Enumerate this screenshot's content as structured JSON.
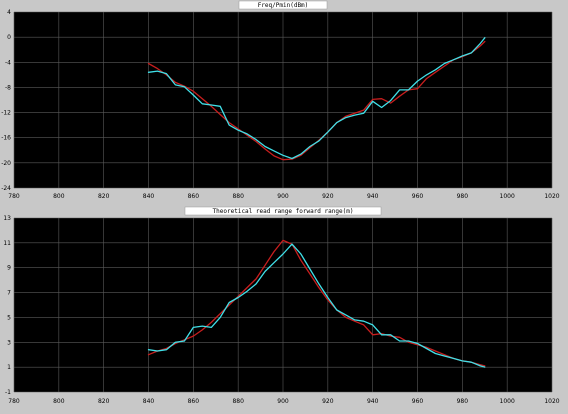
{
  "colors": {
    "window_bg": "#c8c8c8",
    "plot_bg": "#000000",
    "grid": "#5a5a5a",
    "series_1": "#c81e1e",
    "series_2": "#40e0e8"
  },
  "chart_data": [
    {
      "type": "line",
      "title": "Freq/Pmin(dBm)",
      "xlabel": "",
      "ylabel": "",
      "xlim": [
        780,
        1020
      ],
      "ylim": [
        -24,
        4
      ],
      "x_ticks": [
        780,
        800,
        820,
        840,
        860,
        880,
        900,
        920,
        940,
        960,
        980,
        1000,
        1020
      ],
      "y_ticks": [
        4,
        0,
        -4,
        -8,
        -12,
        -16,
        -20,
        -24
      ],
      "grid": true,
      "series": [
        {
          "color": "#c81e1e",
          "x": [
            840,
            844,
            848,
            852,
            856,
            860,
            864,
            868,
            872,
            876,
            880,
            884,
            888,
            892,
            896,
            900,
            904,
            908,
            912,
            916,
            920,
            924,
            928,
            932,
            936,
            940,
            944,
            948,
            952,
            956,
            960,
            964,
            968,
            972,
            976,
            980,
            984,
            988,
            990
          ],
          "y": [
            -4.2,
            -5.0,
            -6.0,
            -7.2,
            -7.8,
            -8.6,
            -9.8,
            -11.0,
            -12.3,
            -13.6,
            -14.6,
            -15.6,
            -16.6,
            -17.8,
            -18.9,
            -19.5,
            -19.4,
            -18.8,
            -17.6,
            -16.4,
            -15.1,
            -13.6,
            -12.6,
            -12.1,
            -11.6,
            -9.9,
            -9.8,
            -10.5,
            -9.4,
            -8.4,
            -8.2,
            -6.6,
            -5.6,
            -4.6,
            -3.6,
            -3.1,
            -2.5,
            -1.4,
            -0.7
          ]
        },
        {
          "color": "#40e0e8",
          "x": [
            840,
            844,
            848,
            852,
            856,
            860,
            864,
            868,
            872,
            876,
            880,
            884,
            888,
            892,
            896,
            900,
            904,
            908,
            912,
            916,
            920,
            924,
            928,
            932,
            936,
            940,
            944,
            948,
            952,
            956,
            960,
            964,
            968,
            972,
            976,
            980,
            984,
            988,
            990
          ],
          "y": [
            -5.6,
            -5.4,
            -5.8,
            -7.6,
            -7.9,
            -9.2,
            -10.6,
            -10.8,
            -11.0,
            -14.0,
            -14.8,
            -15.4,
            -16.3,
            -17.4,
            -18.1,
            -18.8,
            -19.3,
            -18.6,
            -17.4,
            -16.5,
            -15.1,
            -13.6,
            -12.8,
            -12.4,
            -12.1,
            -10.2,
            -11.2,
            -10.1,
            -8.4,
            -8.4,
            -7.0,
            -6.0,
            -5.2,
            -4.2,
            -3.6,
            -3.0,
            -2.5,
            -1.0,
            -0.1
          ]
        }
      ]
    },
    {
      "type": "line",
      "title": "Theoretical read range forward range(m)",
      "xlabel": "",
      "ylabel": "",
      "xlim": [
        780,
        1020
      ],
      "ylim": [
        -1,
        13
      ],
      "x_ticks": [
        780,
        800,
        820,
        840,
        860,
        880,
        900,
        920,
        940,
        960,
        980,
        1000,
        1020
      ],
      "y_ticks": [
        13,
        11,
        9,
        7,
        5,
        3,
        1,
        -1
      ],
      "grid": true,
      "series": [
        {
          "color": "#c81e1e",
          "x": [
            840,
            844,
            848,
            852,
            856,
            860,
            864,
            868,
            872,
            876,
            880,
            884,
            888,
            892,
            896,
            900,
            904,
            908,
            912,
            916,
            920,
            924,
            928,
            932,
            936,
            940,
            944,
            948,
            952,
            956,
            960,
            964,
            968,
            972,
            976,
            980,
            984,
            988,
            990
          ],
          "y": [
            2.0,
            2.3,
            2.5,
            2.9,
            3.2,
            3.5,
            4.0,
            4.6,
            5.3,
            6.0,
            6.7,
            7.4,
            8.1,
            9.2,
            10.3,
            11.2,
            10.9,
            9.6,
            8.5,
            7.4,
            6.4,
            5.6,
            5.0,
            4.7,
            4.4,
            3.6,
            3.7,
            3.5,
            3.4,
            3.0,
            2.8,
            2.6,
            2.3,
            2.0,
            1.7,
            1.5,
            1.4,
            1.2,
            1.1
          ]
        },
        {
          "color": "#40e0e8",
          "x": [
            840,
            844,
            848,
            852,
            856,
            860,
            864,
            868,
            872,
            876,
            880,
            884,
            888,
            892,
            896,
            900,
            904,
            908,
            912,
            916,
            920,
            924,
            928,
            932,
            936,
            940,
            944,
            948,
            952,
            956,
            960,
            964,
            968,
            972,
            976,
            980,
            984,
            988,
            990
          ],
          "y": [
            2.4,
            2.3,
            2.4,
            3.0,
            3.1,
            4.2,
            4.3,
            4.2,
            5.0,
            6.2,
            6.6,
            7.1,
            7.7,
            8.7,
            9.4,
            10.1,
            10.9,
            10.1,
            8.9,
            7.7,
            6.6,
            5.6,
            5.2,
            4.8,
            4.7,
            4.4,
            3.6,
            3.6,
            3.1,
            3.1,
            2.9,
            2.5,
            2.1,
            1.9,
            1.7,
            1.5,
            1.4,
            1.1,
            1.0
          ]
        }
      ]
    }
  ]
}
